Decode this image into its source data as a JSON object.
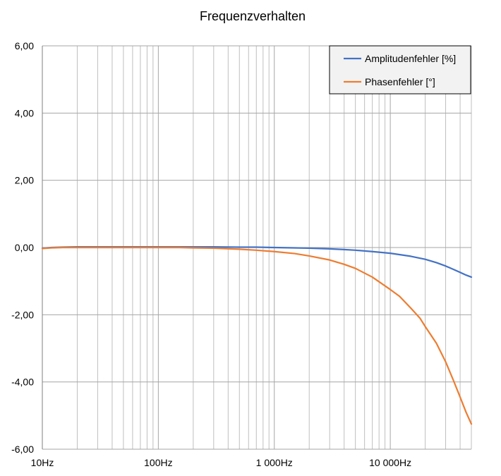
{
  "chart_data": {
    "type": "line",
    "title": "Frequenzverhalten",
    "xlabel": "",
    "ylabel": "",
    "x_scale": "log",
    "xlim": [
      10,
      50000
    ],
    "ylim": [
      -6,
      6
    ],
    "y_ticks": [
      6,
      4,
      2,
      0,
      -2,
      -4,
      -6
    ],
    "y_tick_labels": [
      "6,00",
      "4,00",
      "2,00",
      "0,00",
      "-2,00",
      "-4,00",
      "-6,00"
    ],
    "x_ticks": [
      10,
      100,
      1000,
      10000
    ],
    "x_tick_labels": [
      "10Hz",
      "100Hz",
      "1 000Hz",
      "10 000Hz"
    ],
    "grid": true,
    "legend_position": "top-right",
    "series": [
      {
        "name": "Amplitudenfehler [%]",
        "color": "#4472C4",
        "points": [
          [
            10,
            -0.02
          ],
          [
            12,
            0.0
          ],
          [
            15,
            0.01
          ],
          [
            20,
            0.02
          ],
          [
            30,
            0.02
          ],
          [
            50,
            0.02
          ],
          [
            100,
            0.02
          ],
          [
            150,
            0.02
          ],
          [
            200,
            0.02
          ],
          [
            300,
            0.02
          ],
          [
            500,
            0.01
          ],
          [
            700,
            0.01
          ],
          [
            1000,
            0.0
          ],
          [
            1500,
            -0.01
          ],
          [
            2000,
            -0.02
          ],
          [
            3000,
            -0.04
          ],
          [
            4000,
            -0.06
          ],
          [
            5000,
            -0.08
          ],
          [
            7000,
            -0.12
          ],
          [
            10000,
            -0.17
          ],
          [
            15000,
            -0.26
          ],
          [
            20000,
            -0.35
          ],
          [
            25000,
            -0.45
          ],
          [
            30000,
            -0.55
          ],
          [
            35000,
            -0.65
          ],
          [
            40000,
            -0.74
          ],
          [
            45000,
            -0.82
          ],
          [
            50000,
            -0.88
          ]
        ]
      },
      {
        "name": "Phasenfehler [°]",
        "color": "#ED7D31",
        "points": [
          [
            10,
            -0.03
          ],
          [
            12,
            -0.01
          ],
          [
            15,
            0.0
          ],
          [
            20,
            0.0
          ],
          [
            50,
            0.0
          ],
          [
            100,
            0.0
          ],
          [
            150,
            0.0
          ],
          [
            200,
            -0.01
          ],
          [
            300,
            -0.02
          ],
          [
            500,
            -0.05
          ],
          [
            700,
            -0.08
          ],
          [
            1000,
            -0.12
          ],
          [
            1500,
            -0.18
          ],
          [
            2000,
            -0.25
          ],
          [
            3000,
            -0.37
          ],
          [
            4000,
            -0.5
          ],
          [
            5000,
            -0.62
          ],
          [
            7000,
            -0.88
          ],
          [
            10000,
            -1.25
          ],
          [
            12000,
            -1.45
          ],
          [
            15000,
            -1.8
          ],
          [
            18000,
            -2.1
          ],
          [
            20000,
            -2.35
          ],
          [
            25000,
            -2.85
          ],
          [
            30000,
            -3.4
          ],
          [
            35000,
            -3.95
          ],
          [
            40000,
            -4.45
          ],
          [
            45000,
            -4.9
          ],
          [
            50000,
            -5.25
          ]
        ]
      }
    ]
  }
}
